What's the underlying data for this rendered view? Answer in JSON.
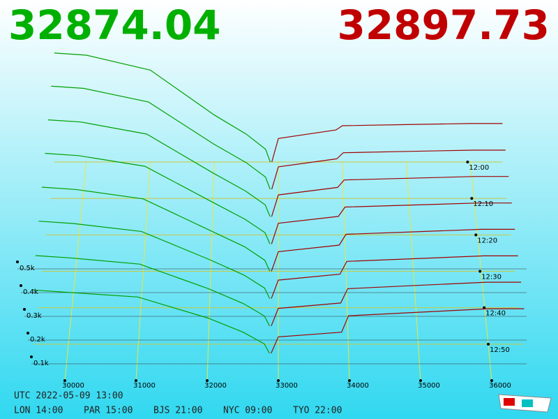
{
  "chart_data": {
    "type": "depth3d",
    "bid_price": 32874.04,
    "ask_price": 32897.73,
    "xlim": [
      29500,
      36500
    ],
    "xticks": [
      30000,
      31000,
      32000,
      33000,
      34000,
      35000,
      36000
    ],
    "zticks": [
      {
        "value": 100,
        "label": "0.1k"
      },
      {
        "value": 200,
        "label": "0.2k"
      },
      {
        "value": 300,
        "label": "0.3k"
      },
      {
        "value": 400,
        "label": "0.4k"
      },
      {
        "value": 500,
        "label": "0.5k"
      }
    ],
    "time_ticks": [
      "12:00",
      "12:10",
      "12:20",
      "12:30",
      "12:40",
      "12:50"
    ],
    "footer": {
      "utc": "UTC 2022-05-09 13:00",
      "cities": [
        "LON 14:00",
        "PAR 15:00",
        "BJS 21:00",
        "NYC 09:00",
        "TYO 22:00"
      ]
    },
    "bids": {
      "color": "#00a000",
      "prices": [
        29500,
        30000,
        31000,
        32000,
        32500,
        32800,
        32874.04
      ],
      "slices": [
        [
          510,
          500,
          430,
          220,
          130,
          60,
          0
        ],
        [
          476,
          466,
          403,
          210,
          124,
          57,
          0
        ],
        [
          441,
          431,
          376,
          200,
          117,
          54,
          0
        ],
        [
          407,
          397,
          349,
          190,
          111,
          51,
          0
        ],
        [
          373,
          363,
          321,
          180,
          109,
          49,
          0
        ],
        [
          339,
          329,
          294,
          170,
          103,
          46,
          0
        ],
        [
          304,
          294,
          267,
          160,
          96,
          43,
          0
        ],
        [
          270,
          260,
          240,
          150,
          90,
          40,
          0
        ]
      ]
    },
    "asks": {
      "color": "#a00000",
      "prices": [
        32897.73,
        33000,
        33900,
        34000,
        35000,
        36000,
        36500
      ],
      "slices": [
        [
          0,
          110,
          150,
          170,
          175,
          180,
          180
        ],
        [
          0,
          104,
          141,
          169,
          175,
          181,
          181
        ],
        [
          0,
          99,
          133,
          167,
          175,
          183,
          183
        ],
        [
          0,
          93,
          124,
          166,
          175,
          184,
          184
        ],
        [
          0,
          87,
          116,
          164,
          175,
          186,
          186
        ],
        [
          0,
          81,
          107,
          163,
          175,
          187,
          187
        ],
        [
          0,
          76,
          99,
          161,
          175,
          189,
          189
        ],
        [
          0,
          70,
          90,
          160,
          175,
          190,
          190
        ]
      ]
    }
  }
}
